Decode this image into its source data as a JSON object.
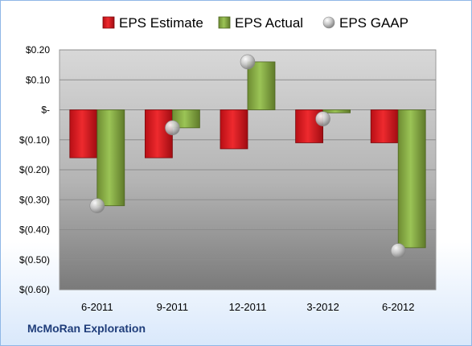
{
  "chart_data": {
    "type": "bar",
    "categories": [
      "6-2011",
      "9-2011",
      "12-2011",
      "3-2012",
      "6-2012"
    ],
    "series": [
      {
        "name": "EPS Estimate",
        "kind": "bar",
        "color": "#e8141c",
        "values": [
          -0.16,
          -0.16,
          -0.13,
          -0.11,
          -0.11
        ]
      },
      {
        "name": "EPS Actual",
        "kind": "bar",
        "color": "#8fb44a",
        "values": [
          -0.32,
          -0.06,
          0.16,
          -0.01,
          -0.46
        ]
      },
      {
        "name": "EPS GAAP",
        "kind": "marker",
        "color": "#b8b8b8",
        "values": [
          -0.32,
          -0.06,
          0.16,
          -0.03,
          -0.47
        ]
      }
    ],
    "ylim": [
      -0.6,
      0.2
    ],
    "yticks": [
      0.2,
      0.1,
      0,
      -0.1,
      -0.2,
      -0.3,
      -0.4,
      -0.5,
      -0.6
    ],
    "ytick_labels": [
      "$0.20",
      "$0.10",
      "$-",
      "$(0.10)",
      "$(0.20)",
      "$(0.30)",
      "$(0.40)",
      "$(0.50)",
      "$(0.60)"
    ],
    "grid": true,
    "legend_position": "top",
    "title": "",
    "xlabel": "",
    "ylabel": ""
  },
  "footer": {
    "company": "McMoRan Exploration"
  }
}
